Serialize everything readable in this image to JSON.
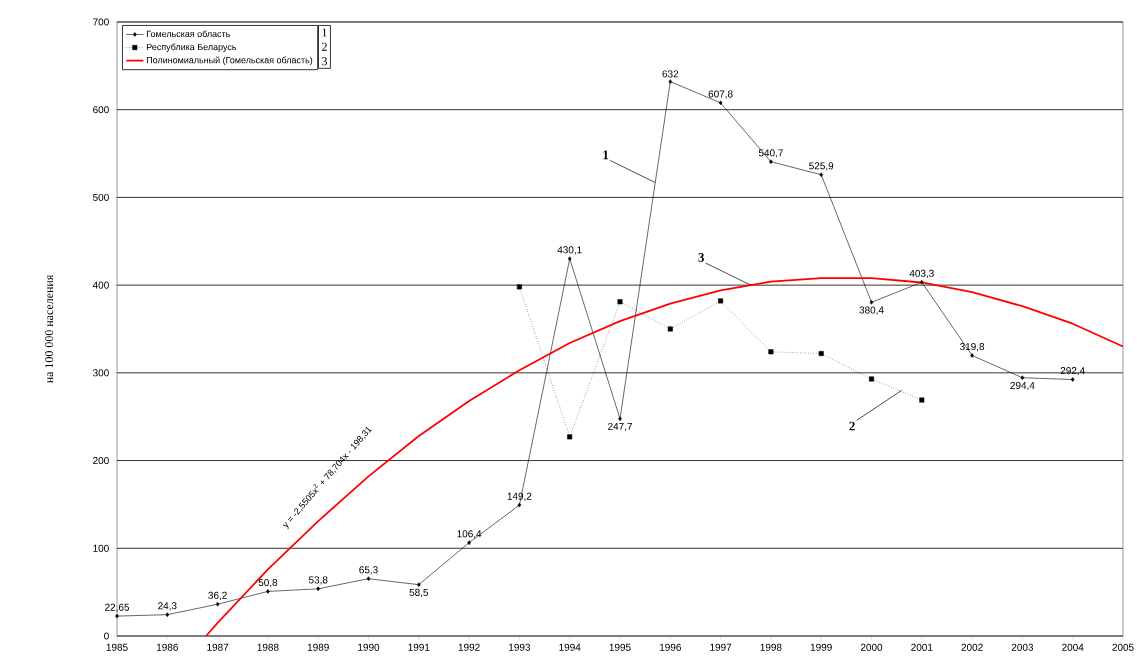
{
  "chart_data": {
    "type": "line",
    "ylabel": "на 100 000 населения",
    "xlim": [
      1985,
      2005
    ],
    "xticks": [
      1985,
      1986,
      1987,
      1988,
      1989,
      1990,
      1991,
      1992,
      1993,
      1994,
      1995,
      1996,
      1997,
      1998,
      1999,
      2000,
      2001,
      2002,
      2003,
      2004,
      2005
    ],
    "ylim": [
      0,
      700
    ],
    "yticks": [
      0,
      100,
      200,
      300,
      400,
      500,
      600,
      700
    ],
    "grid": "y",
    "legend": "top left",
    "series": [
      {
        "name": "Гомельская область",
        "color": "#000000",
        "marker": "diamond",
        "line_style": "solid",
        "x": [
          1985,
          1986,
          1987,
          1988,
          1989,
          1990,
          1991,
          1992,
          1993,
          1994,
          1995,
          1996,
          1997,
          1998,
          1999,
          2000,
          2001,
          2002,
          2003,
          2004
        ],
        "values": [
          22.65,
          24.3,
          36.2,
          50.8,
          53.8,
          65.3,
          58.5,
          106.4,
          149.2,
          430.1,
          247.7,
          632,
          607.8,
          540.7,
          525.9,
          380.4,
          403.3,
          319.8,
          294.4,
          292.4
        ],
        "value_labels": [
          "22,65",
          "24,3",
          "36,2",
          "50,8",
          "53,8",
          "65,3",
          "58,5",
          "106,4",
          "149,2",
          "430,1",
          "247,7",
          "632",
          "607,8",
          "540,7",
          "525,9",
          "380,4",
          "403,3",
          "319,8",
          "294,4",
          "292,4"
        ]
      },
      {
        "name": "Республика Беларусь",
        "color": "#000000",
        "marker": "square",
        "line_style": "dotted",
        "x": [
          1993,
          1994,
          1995,
          1996,
          1997,
          1998,
          1999,
          2000,
          2001
        ],
        "values": [
          398,
          227,
          381,
          350,
          382,
          324,
          322,
          293,
          269
        ]
      },
      {
        "name": "Полиномиальный (Гомельская область)",
        "color": "#ff0000",
        "marker": "none",
        "line_style": "solid",
        "x": [
          1986.77,
          1987,
          1988,
          1989,
          1990,
          1991,
          1992,
          1993,
          1994,
          1995,
          1996,
          1997,
          1998,
          1999,
          2000,
          2001,
          2002,
          2003,
          2004,
          2005
        ],
        "values": [
          0,
          15,
          76,
          131,
          182,
          228,
          268,
          303,
          334,
          359,
          379,
          394,
          404,
          408,
          408,
          403,
          392,
          376,
          356,
          330
        ]
      }
    ],
    "annotations": [
      "1",
      "2",
      "3",
      {
        "text": "1",
        "x": 1995.7,
        "y": 517
      },
      {
        "text": "2",
        "x": 2000.6,
        "y": 280
      },
      {
        "text": "3",
        "x": 1997.6,
        "y": 400
      },
      "y = -2,5505x$^{2}$ + 78,704x - 198,31"
    ]
  }
}
